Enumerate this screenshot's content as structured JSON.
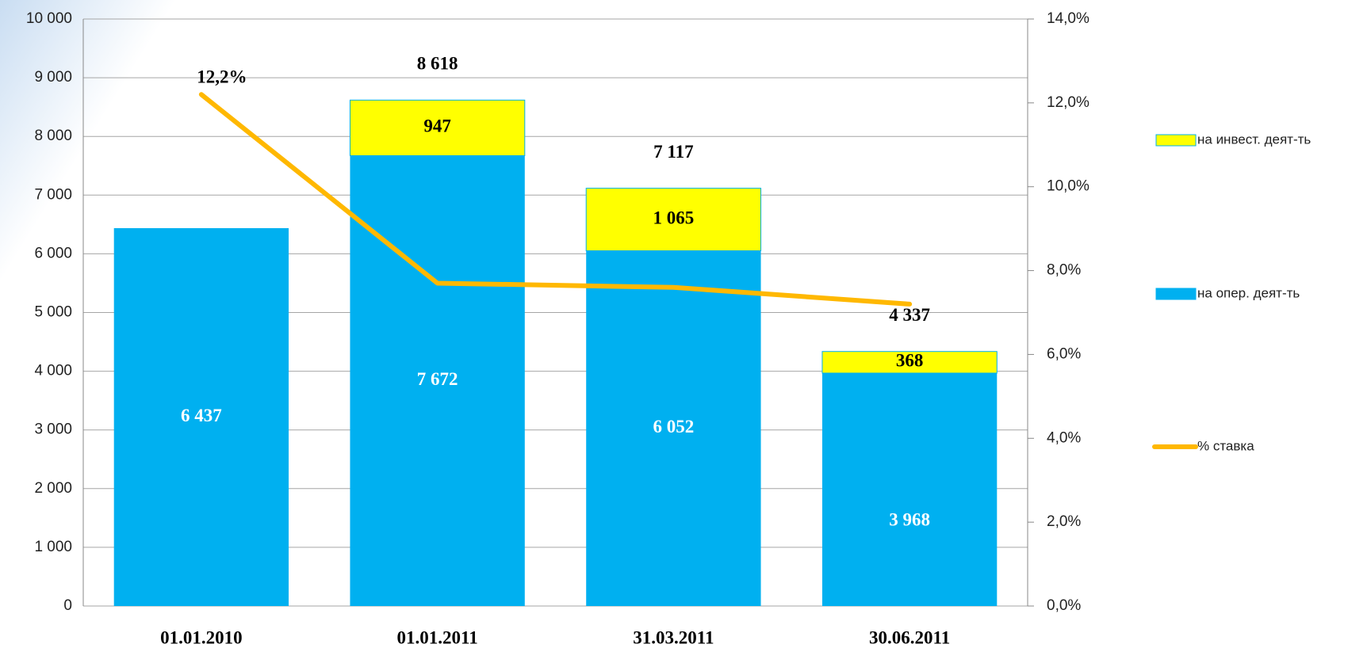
{
  "chart_data": {
    "type": "stacked-bar-line",
    "categories": [
      "01.01.2010",
      "01.01.2011",
      "31.03.2011",
      "30.06.2011"
    ],
    "series": [
      {
        "name": "на опер. деят-ть",
        "color": "#00b0f0",
        "values": [
          6437,
          7672,
          6052,
          3968
        ],
        "value_labels": [
          "6 437",
          "7 672",
          "6 052",
          "3 968"
        ]
      },
      {
        "name": "на инвест. деят-ть",
        "color": "#ffff00",
        "values": [
          null,
          947,
          1065,
          368
        ],
        "value_labels": [
          null,
          "947",
          "1 065",
          "368"
        ]
      },
      {
        "name": "% ставка",
        "color": "#ffb800",
        "type": "line",
        "axis": "y2",
        "values": [
          12.2,
          7.7,
          7.6,
          7.2
        ],
        "value_labels": [
          "12,2%",
          null,
          null,
          null
        ]
      }
    ],
    "totals": [
      null,
      8618,
      7117,
      4337
    ],
    "total_labels": [
      null,
      "8 618",
      "7 117",
      "4 337"
    ],
    "ylim": [
      0,
      10000
    ],
    "yticks": [
      0,
      {
        "value": 1000,
        "label": "1 000"
      },
      {
        "value": 2000,
        "label": "2 000"
      },
      {
        "value": 3000,
        "label": "3 000"
      },
      {
        "value": 4000,
        "label": "4 000"
      },
      {
        "value": 5000,
        "label": "5 000"
      },
      {
        "value": 6000,
        "label": "6 000"
      },
      {
        "value": 7000,
        "label": "7 000"
      },
      {
        "value": 8000,
        "label": "8 000"
      },
      {
        "value": 9000,
        "label": "9 000"
      },
      {
        "value": 10000,
        "label": "10 000"
      }
    ],
    "y2lim": [
      0,
      14
    ],
    "y2ticks": [
      {
        "value": 0,
        "label": "0,0%"
      },
      {
        "value": 2,
        "label": "2,0%"
      },
      {
        "value": 4,
        "label": "4,0%"
      },
      {
        "value": 6,
        "label": "6,0%"
      },
      {
        "value": 8,
        "label": "8,0%"
      },
      {
        "value": 10,
        "label": "10,0%"
      },
      {
        "value": 12,
        "label": "12,0%"
      },
      {
        "value": 14,
        "label": "14,0%"
      }
    ],
    "grid": true
  }
}
